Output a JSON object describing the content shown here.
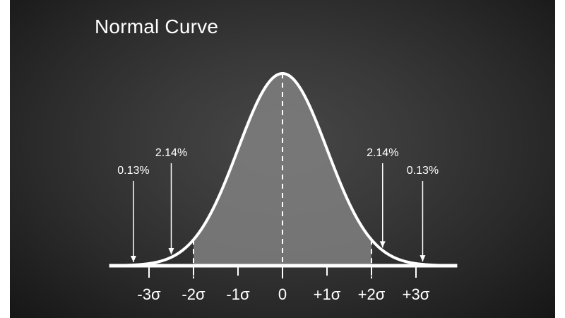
{
  "chart_data": {
    "type": "area",
    "title": "Normal Curve",
    "distribution": "normal",
    "mean": 0,
    "sd": 1,
    "x_range": [
      -3.8,
      3.8
    ],
    "shaded_range": [
      -2,
      2
    ],
    "dashed_lines_at": [
      -3,
      -2,
      0,
      2,
      3
    ],
    "tick_labels": [
      {
        "x": -3,
        "label": "-3σ"
      },
      {
        "x": -2,
        "label": "-2σ"
      },
      {
        "x": -1,
        "label": "-1σ"
      },
      {
        "x": 0,
        "label": "0"
      },
      {
        "x": 1,
        "label": "+1σ"
      },
      {
        "x": 2,
        "label": "+2σ"
      },
      {
        "x": 3,
        "label": "+3σ"
      }
    ],
    "annotations": [
      {
        "text": "0.13%",
        "x": -3.35
      },
      {
        "text": "2.14%",
        "x": -2.5
      },
      {
        "text": "2.14%",
        "x": 2.25
      },
      {
        "text": "0.13%",
        "x": 3.15
      }
    ],
    "grid": false,
    "background": "#2f2f2f",
    "curve_color": "#ffffff",
    "fill_color": "#808080"
  }
}
